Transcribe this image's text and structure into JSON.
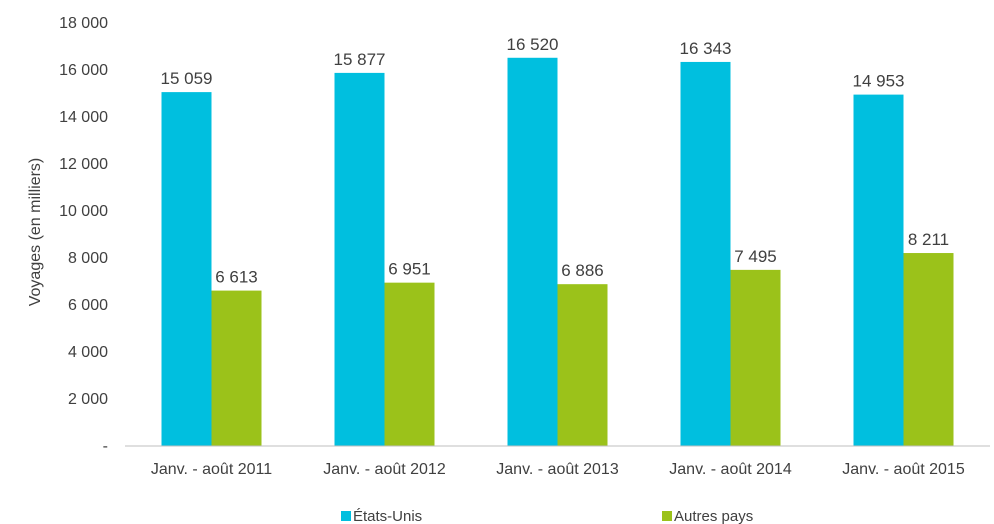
{
  "chart_data": {
    "type": "bar",
    "title": "",
    "xlabel": "",
    "ylabel": "Voyages (en milliers)",
    "categories": [
      "Janv. - août 2011",
      "Janv. - août 2012",
      "Janv. - août 2013",
      "Janv. - août 2014",
      "Janv. - août 2015"
    ],
    "series": [
      {
        "name": "États-Unis",
        "color": "#00BFDF",
        "values": [
          15059,
          15877,
          16520,
          16343,
          14953
        ],
        "labels": [
          "15 059",
          "15 877",
          "16 520",
          "16 343",
          "14 953"
        ]
      },
      {
        "name": "Autres pays",
        "color": "#9BC21A",
        "values": [
          6613,
          6951,
          6886,
          7495,
          8211
        ],
        "labels": [
          "6 613",
          "6 951",
          "6 886",
          "7 495",
          "8 211"
        ]
      }
    ],
    "ylim": [
      0,
      18000
    ],
    "yticks": [
      0,
      2000,
      4000,
      6000,
      8000,
      10000,
      12000,
      14000,
      16000,
      18000
    ],
    "ytick_labels": [
      "-",
      "2 000",
      "4 000",
      "6 000",
      "8 000",
      "10 000",
      "12 000",
      "14 000",
      "16 000",
      "18 000"
    ],
    "grid": false,
    "legend_position": "bottom"
  }
}
